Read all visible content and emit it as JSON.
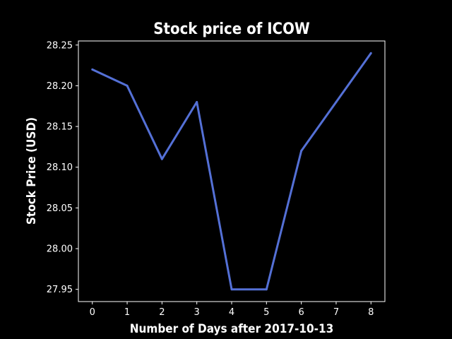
{
  "chart_data": {
    "type": "line",
    "title": "Stock price of ICOW",
    "xlabel": "Number of Days after 2017-10-13",
    "ylabel": "Stock Price (USD)",
    "x": [
      0,
      1,
      2,
      3,
      4,
      5,
      6,
      7,
      8
    ],
    "series": [
      {
        "values": [
          28.22,
          28.2,
          28.11,
          28.18,
          27.95,
          27.95,
          28.12,
          28.18,
          28.24
        ]
      }
    ],
    "xlim": [
      -0.4,
      8.4
    ],
    "ylim": [
      27.935,
      28.255
    ],
    "xticks": [
      "0",
      "1",
      "2",
      "3",
      "4",
      "5",
      "6",
      "7",
      "8"
    ],
    "yticks": [
      "27.95",
      "28.00",
      "28.05",
      "28.10",
      "28.15",
      "28.20",
      "28.25"
    ],
    "grid": false,
    "colors": {
      "background": "#000000",
      "axes": "#ffffff",
      "line": "#5470d6",
      "text": "#ffffff"
    }
  }
}
